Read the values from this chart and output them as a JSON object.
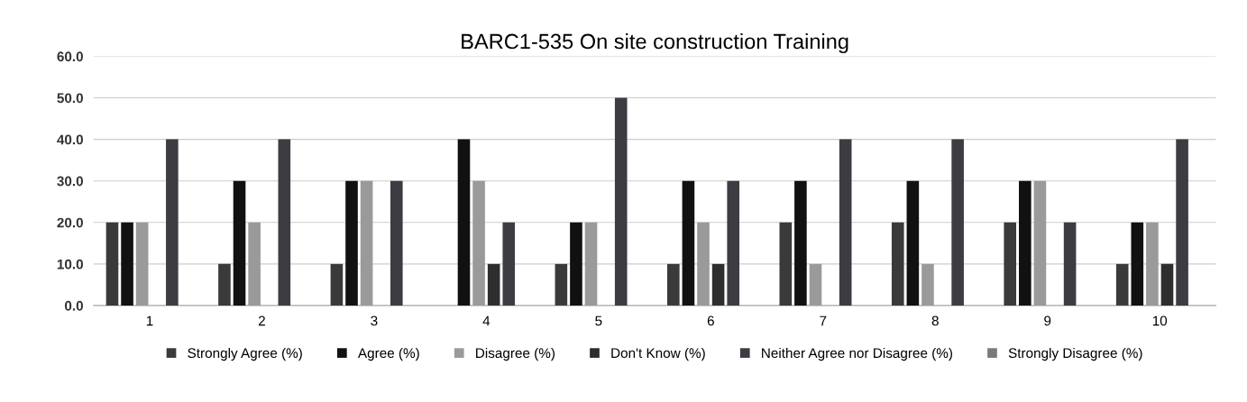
{
  "chart_data": {
    "type": "bar",
    "title": "BARC1-535 On site construction Training",
    "categories": [
      "1",
      "2",
      "3",
      "4",
      "5",
      "6",
      "7",
      "8",
      "9",
      "10"
    ],
    "series": [
      {
        "name": "Strongly Agree (%)",
        "color": "#3a3a3a",
        "values": [
          20,
          10,
          10,
          0,
          10,
          10,
          20,
          20,
          20,
          10
        ]
      },
      {
        "name": "Agree (%)",
        "color": "#111111",
        "values": [
          20,
          30,
          30,
          40,
          20,
          30,
          30,
          30,
          30,
          20
        ]
      },
      {
        "name": "Disagree (%)",
        "color": "#9a9a9a",
        "values": [
          20,
          20,
          30,
          30,
          20,
          20,
          10,
          10,
          30,
          20
        ]
      },
      {
        "name": "Don't Know (%)",
        "color": "#2e2e30",
        "values": [
          0,
          0,
          0,
          10,
          0,
          10,
          0,
          0,
          0,
          10
        ]
      },
      {
        "name": "Neither Agree nor Disagree (%)",
        "color": "#3c3c42",
        "values": [
          40,
          40,
          30,
          20,
          50,
          30,
          40,
          40,
          20,
          40
        ]
      },
      {
        "name": "Strongly Disagree (%)",
        "color": "#7a7a7a",
        "values": [
          0,
          0,
          0,
          0,
          0,
          0,
          0,
          0,
          0,
          0
        ]
      }
    ],
    "ylim": [
      0,
      60
    ],
    "yticks": [
      {
        "value": 0,
        "label": "0.0"
      },
      {
        "value": 10,
        "label": "10.0"
      },
      {
        "value": 20,
        "label": "20.0"
      },
      {
        "value": 30,
        "label": "30.0"
      },
      {
        "value": 40,
        "label": "40.0"
      },
      {
        "value": 50,
        "label": "50.0"
      },
      {
        "value": 60,
        "label": "60.0"
      }
    ],
    "grid": "y",
    "legend": "bottom"
  }
}
